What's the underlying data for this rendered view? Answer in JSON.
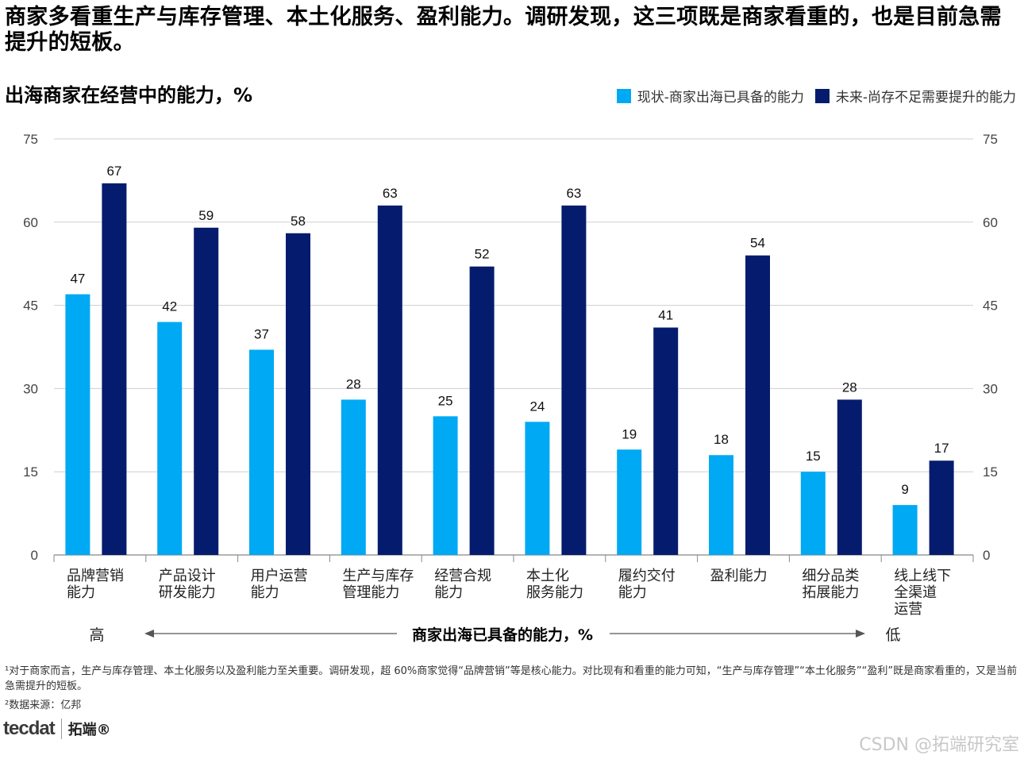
{
  "title": "商家多看重生产与库存管理、本土化服务、盈利能力。调研发现，这三项既是商家看重的，也是目前急需提升的短板。",
  "subtitle": "出海商家在经营中的能力，%",
  "colors": {
    "current": "#00a9f4",
    "future": "#051c6e",
    "grid": "#cfcfcf",
    "axis": "#888888"
  },
  "chart_data": {
    "type": "bar",
    "title": "出海商家在经营中的能力，%",
    "categories": [
      [
        "品牌营销",
        "能力"
      ],
      [
        "产品设计",
        "研发能力"
      ],
      [
        "用户运营",
        "能力"
      ],
      [
        "生产与库存",
        "管理能力"
      ],
      [
        "经营合规",
        "能力"
      ],
      [
        "本土化",
        "服务能力"
      ],
      [
        "履约交付",
        "能力"
      ],
      [
        "盈利能力"
      ],
      [
        "细分品类",
        "拓展能力"
      ],
      [
        "线上线下",
        "全渠道",
        "运营"
      ]
    ],
    "series": [
      {
        "name": "现状-商家出海已具备的能力",
        "values": [
          47,
          42,
          37,
          28,
          25,
          24,
          19,
          18,
          15,
          9
        ]
      },
      {
        "name": "未来-尚存不足需要提升的能力",
        "values": [
          67,
          59,
          58,
          63,
          52,
          63,
          41,
          54,
          28,
          17
        ]
      }
    ],
    "ylim": [
      0,
      75
    ],
    "yticks": [
      "75",
      "60",
      "45",
      "30",
      "15",
      "0"
    ],
    "xlabel": "商家出海已具备的能力，%",
    "xlabel_left": "高",
    "xlabel_right": "低",
    "grid": true,
    "legend": "top-right"
  },
  "footnotes": [
    "¹对于商家而言，生产与库存管理、本土化服务以及盈利能力至关重要。调研发现，超 60%商家觉得“品牌营销”等是核心能力。对比现有和看重的能力可知，“生产与库存管理”“本土化服务”“盈利”既是商家看重的，又是当前急需提升的短板。",
    "²数据来源：亿邦"
  ],
  "logo": {
    "mark": "tecdat",
    "name": "拓端®"
  },
  "watermark": "CSDN @拓端研究室"
}
